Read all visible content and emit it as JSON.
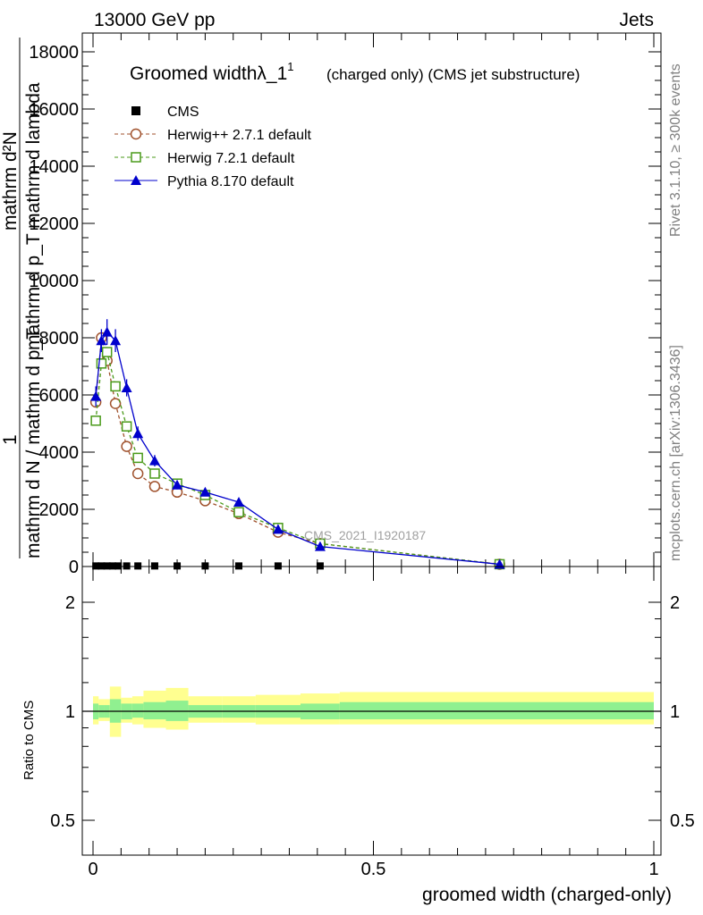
{
  "header": {
    "left": "13000 GeV pp",
    "right": "Jets"
  },
  "side_labels": {
    "rivet": "Rivet 3.1.10, ≥ 300k events",
    "mcplots": "mcplots.cern.ch [arXiv:1306.3436]"
  },
  "watermark": "CMS_2021_I1920187",
  "main_plot": {
    "title": "Groomed widthλ_1",
    "title_sup": "1",
    "title_suffix": "(charged only) (CMS jet substructure)",
    "ylabel_lines": [
      "mathrm d²N",
      "mathrm d p_T mathrm d lambda",
      "1",
      "mathrm d N / mathrm d p_T",
      "mathrm dN"
    ],
    "ylabel": {
      "numerator": "1",
      "frac_top": "mathrm d²N",
      "frac_top2": "mathrm d p_T mathrm d lambda",
      "denominator": "mathrm d N / mathrm d p_T",
      "denom_sub": "T",
      "num_sub": "T"
    }
  },
  "ratio_plot": {
    "ylabel": "Ratio to CMS",
    "xlabel": "groomed width (charged-only)"
  },
  "legend": [
    {
      "name": "CMS",
      "color": "#000000",
      "marker": "square-filled"
    },
    {
      "name": "Herwig++ 2.7.1 default",
      "color": "#a0522d",
      "marker": "circle-open"
    },
    {
      "name": "Herwig 7.2.1 default",
      "color": "#4a9a1a",
      "marker": "square-open"
    },
    {
      "name": "Pythia 8.170 default",
      "color": "#0000cc",
      "marker": "triangle-filled"
    }
  ],
  "chart_data": [
    {
      "type": "line",
      "title": "Groomed widthλ_1",
      "ylim": [
        0,
        18000
      ],
      "xlim": [
        -0.02,
        1.0
      ],
      "yticks": [
        0,
        2000,
        4000,
        6000,
        8000,
        10000,
        12000,
        14000,
        16000,
        18000
      ],
      "ytick_labels": [
        "0",
        "2000",
        "4000",
        "6000",
        "8000",
        "10000",
        "12000",
        "14000",
        "16000",
        "18000"
      ],
      "series": [
        {
          "name": "CMS",
          "x": [
            0.005,
            0.015,
            0.025,
            0.035,
            0.045,
            0.06,
            0.08,
            0.11,
            0.15,
            0.2,
            0.26,
            0.33,
            0.405
          ],
          "values": [
            20,
            20,
            20,
            20,
            20,
            20,
            20,
            20,
            20,
            20,
            20,
            20,
            20
          ]
        },
        {
          "name": "Herwig++ 2.7.1 default",
          "x": [
            0.005,
            0.015,
            0.025,
            0.04,
            0.06,
            0.08,
            0.11,
            0.15,
            0.2,
            0.26,
            0.33,
            0.405,
            0.725
          ],
          "values": [
            5750,
            8000,
            7200,
            5700,
            4200,
            3250,
            2800,
            2600,
            2300,
            1850,
            1200,
            800,
            80
          ]
        },
        {
          "name": "Herwig 7.2.1 default",
          "x": [
            0.005,
            0.015,
            0.025,
            0.04,
            0.06,
            0.08,
            0.11,
            0.15,
            0.2,
            0.26,
            0.33,
            0.405,
            0.725
          ],
          "values": [
            5100,
            7100,
            7500,
            6300,
            4900,
            3800,
            3250,
            2900,
            2500,
            1900,
            1350,
            800,
            80
          ]
        },
        {
          "name": "Pythia 8.170 default",
          "x": [
            0.005,
            0.015,
            0.025,
            0.04,
            0.06,
            0.08,
            0.11,
            0.15,
            0.2,
            0.26,
            0.33,
            0.405,
            0.725
          ],
          "values": [
            5950,
            7900,
            8200,
            7900,
            6250,
            4650,
            3700,
            2850,
            2600,
            2250,
            1300,
            700,
            80
          ],
          "errors": [
            350,
            400,
            450,
            400,
            300,
            250,
            200,
            150,
            120,
            100,
            80,
            60,
            20
          ]
        }
      ]
    },
    {
      "type": "area",
      "ylabel": "Ratio to CMS",
      "xlabel": "groomed width (charged-only)",
      "ylog": true,
      "ylim": [
        0.4,
        2.5
      ],
      "yticks": [
        0.5,
        1,
        2
      ],
      "ytick_labels": [
        "0.5",
        "1",
        "2"
      ],
      "xticks": [
        0,
        0.5,
        1
      ],
      "xtick_labels": [
        "0",
        "0.5",
        "1"
      ],
      "bands": {
        "x_edges": [
          0.0,
          0.01,
          0.02,
          0.03,
          0.05,
          0.07,
          0.09,
          0.13,
          0.17,
          0.23,
          0.29,
          0.37,
          0.44,
          1.0
        ],
        "stat_low": [
          0.95,
          0.96,
          0.96,
          0.93,
          0.95,
          0.96,
          0.95,
          0.94,
          0.96,
          0.96,
          0.96,
          0.95,
          0.95
        ],
        "stat_high": [
          1.05,
          1.04,
          1.04,
          1.08,
          1.05,
          1.05,
          1.06,
          1.07,
          1.04,
          1.04,
          1.04,
          1.05,
          1.06
        ],
        "total_low": [
          0.92,
          0.94,
          0.94,
          0.85,
          0.93,
          0.92,
          0.9,
          0.89,
          0.93,
          0.93,
          0.92,
          0.92,
          0.92
        ],
        "total_high": [
          1.1,
          1.08,
          1.08,
          1.17,
          1.09,
          1.1,
          1.14,
          1.16,
          1.1,
          1.1,
          1.11,
          1.12,
          1.13
        ]
      },
      "band_colors": {
        "stat": "#90f090",
        "total": "#ffff90"
      },
      "reference_line": 1
    }
  ]
}
